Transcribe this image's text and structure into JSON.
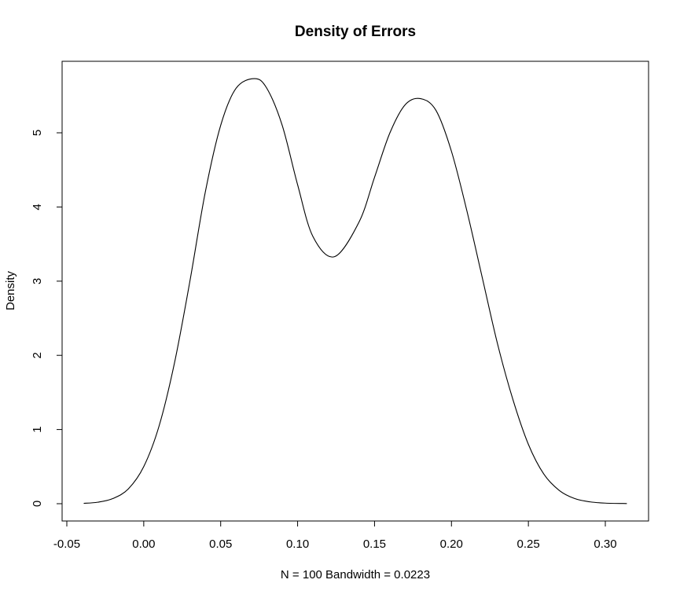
{
  "chart_data": {
    "type": "line",
    "title": "Density of Errors",
    "xlabel": "N = 100   Bandwidth = 0.0223",
    "ylabel": "Density",
    "xlim": [
      -0.05,
      0.32
    ],
    "ylim": [
      0,
      5.75
    ],
    "x_ticks": [
      -0.05,
      0.0,
      0.05,
      0.1,
      0.15,
      0.2,
      0.25,
      0.3
    ],
    "x_tick_labels": [
      "-0.05",
      "0.00",
      "0.05",
      "0.10",
      "0.15",
      "0.20",
      "0.25",
      "0.30"
    ],
    "y_ticks": [
      0,
      1,
      2,
      3,
      4,
      5
    ],
    "y_tick_labels": [
      "0",
      "1",
      "2",
      "3",
      "4",
      "5"
    ],
    "grid": false,
    "series": [
      {
        "x": [
          -0.039,
          -0.03,
          -0.02,
          -0.01,
          0.0,
          0.01,
          0.02,
          0.03,
          0.04,
          0.05,
          0.06,
          0.072,
          0.08,
          0.09,
          0.1,
          0.11,
          0.124,
          0.14,
          0.15,
          0.16,
          0.17,
          0.18,
          0.19,
          0.2,
          0.21,
          0.22,
          0.23,
          0.24,
          0.25,
          0.26,
          0.27,
          0.28,
          0.29,
          0.3,
          0.314
        ],
        "y": [
          0.005,
          0.02,
          0.07,
          0.2,
          0.5,
          1.05,
          1.9,
          3.0,
          4.2,
          5.1,
          5.6,
          5.73,
          5.6,
          5.1,
          4.3,
          3.6,
          3.33,
          3.8,
          4.4,
          5.0,
          5.38,
          5.46,
          5.3,
          4.75,
          3.95,
          3.05,
          2.15,
          1.4,
          0.8,
          0.4,
          0.18,
          0.07,
          0.025,
          0.008,
          0.002
        ]
      }
    ]
  }
}
